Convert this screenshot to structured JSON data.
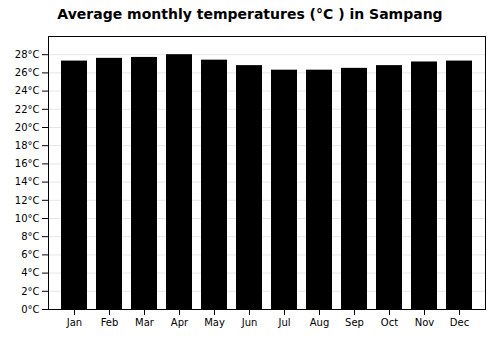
{
  "chart_data": {
    "type": "bar",
    "title": "Average monthly temperatures (°C ) in Sampang",
    "categories": [
      "Jan",
      "Feb",
      "Mar",
      "Apr",
      "May",
      "Jun",
      "Jul",
      "Aug",
      "Sep",
      "Oct",
      "Nov",
      "Dec"
    ],
    "values": [
      27.3,
      27.6,
      27.7,
      28.0,
      27.4,
      26.8,
      26.3,
      26.3,
      26.5,
      26.8,
      27.2,
      27.3
    ],
    "ylim": [
      0,
      30
    ],
    "yticks": [
      {
        "value": 0,
        "label": "0°C"
      },
      {
        "value": 2,
        "label": "2°C"
      },
      {
        "value": 4,
        "label": "4°C"
      },
      {
        "value": 6,
        "label": "6°C"
      },
      {
        "value": 8,
        "label": "8°C"
      },
      {
        "value": 10,
        "label": "10°C"
      },
      {
        "value": 12,
        "label": "12°C"
      },
      {
        "value": 14,
        "label": "14°C"
      },
      {
        "value": 16,
        "label": "16°C"
      },
      {
        "value": 18,
        "label": "18°C"
      },
      {
        "value": 20,
        "label": "20°C"
      },
      {
        "value": 22,
        "label": "22°C"
      },
      {
        "value": 24,
        "label": "24°C"
      },
      {
        "value": 26,
        "label": "26°C"
      },
      {
        "value": 28,
        "label": "28°C"
      }
    ],
    "grid": true
  }
}
